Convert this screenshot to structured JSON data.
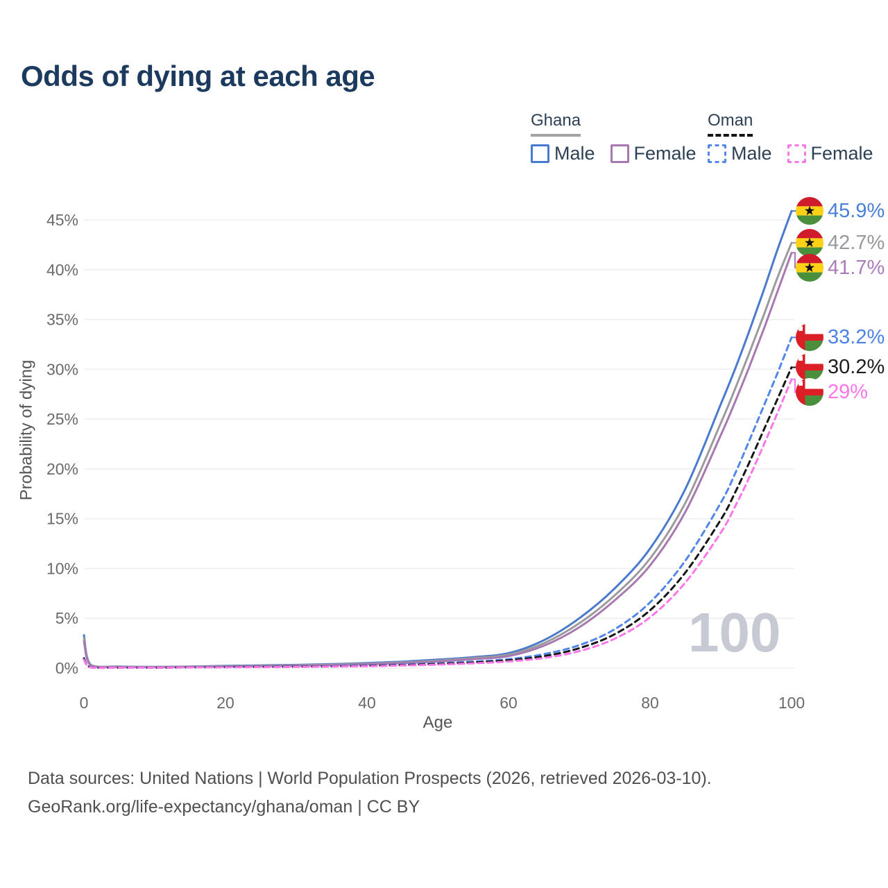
{
  "title": "Odds of dying at each age",
  "legend": {
    "groups": [
      {
        "name": "Ghana",
        "line_style": "solid",
        "underline_color": "#a3a3a3",
        "items": [
          {
            "label": "Male",
            "color": "#4a7ace"
          },
          {
            "label": "Female",
            "color": "#a878b0"
          }
        ]
      },
      {
        "name": "Oman",
        "line_style": "dashed",
        "underline_color": "#141414",
        "items": [
          {
            "label": "Male",
            "color": "#5287e8"
          },
          {
            "label": "Female",
            "color": "#fb76e9"
          }
        ]
      }
    ]
  },
  "watermark_age": "100",
  "footer": {
    "line1": "Data sources: United Nations | World Population Prospects (2026, retrieved 2026-03-10).",
    "line2": "GeoRank.org/life-expectancy/ghana/oman | CC BY"
  },
  "chart_data": {
    "type": "line",
    "title": "Odds of dying at each age",
    "xlabel": "Age",
    "ylabel": "Probability of dying",
    "xlim": [
      0,
      100
    ],
    "ylim_percent": [
      0,
      46
    ],
    "x_ticks": [
      0,
      20,
      40,
      60,
      80,
      100
    ],
    "y_ticks_percent": [
      0,
      5,
      10,
      15,
      20,
      25,
      30,
      35,
      40,
      45
    ],
    "grid": "horizontal",
    "legend_position": "top-right",
    "x": [
      0,
      1,
      5,
      10,
      15,
      20,
      25,
      30,
      35,
      40,
      45,
      50,
      55,
      60,
      65,
      70,
      75,
      80,
      85,
      90,
      92,
      94,
      96,
      98,
      100
    ],
    "series": [
      {
        "name": "Ghana Male",
        "country": "Ghana",
        "sex": "Male",
        "flag": "ghana",
        "color": "#4a7ace",
        "label_color": "#4a7fd6",
        "dashed": false,
        "end_label": "45.9%",
        "end_value_percent": 45.9,
        "values_percent": [
          3.3,
          0.3,
          0.15,
          0.12,
          0.16,
          0.22,
          0.27,
          0.32,
          0.4,
          0.5,
          0.65,
          0.85,
          1.1,
          1.5,
          2.8,
          5.0,
          8.0,
          12.0,
          18.0,
          26.5,
          30.0,
          33.8,
          37.8,
          42.0,
          45.9
        ]
      },
      {
        "name": "Ghana (both sexes)",
        "country": "Ghana",
        "sex": "Both",
        "flag": "ghana",
        "color": "#9b9b9b",
        "label_color": "#97979d",
        "dashed": false,
        "end_label": "42.7%",
        "end_value_percent": 42.7,
        "values_percent": [
          3.0,
          0.27,
          0.13,
          0.11,
          0.14,
          0.19,
          0.23,
          0.28,
          0.35,
          0.44,
          0.57,
          0.75,
          1.0,
          1.35,
          2.5,
          4.5,
          7.3,
          11.0,
          16.6,
          24.6,
          28.0,
          31.6,
          35.3,
          39.2,
          42.7
        ]
      },
      {
        "name": "Ghana Female",
        "country": "Ghana",
        "sex": "Female",
        "flag": "ghana",
        "color": "#a878b0",
        "label_color": "#aa7cb8",
        "dashed": false,
        "end_label": "41.7%",
        "end_value_percent": 41.7,
        "values_percent": [
          2.7,
          0.25,
          0.12,
          0.1,
          0.12,
          0.16,
          0.2,
          0.24,
          0.3,
          0.38,
          0.5,
          0.66,
          0.9,
          1.2,
          2.25,
          4.1,
          6.8,
          10.3,
          15.7,
          23.4,
          26.7,
          30.2,
          33.9,
          37.8,
          41.7
        ]
      },
      {
        "name": "Oman Male",
        "country": "Oman",
        "sex": "Male",
        "flag": "oman",
        "color": "#5287e8",
        "label_color": "#4c82e8",
        "dashed": true,
        "end_label": "33.2%",
        "end_value_percent": 33.2,
        "values_percent": [
          1.0,
          0.08,
          0.05,
          0.05,
          0.08,
          0.12,
          0.14,
          0.16,
          0.2,
          0.26,
          0.35,
          0.48,
          0.65,
          0.9,
          1.4,
          2.3,
          3.9,
          6.6,
          10.8,
          16.6,
          19.5,
          22.8,
          26.2,
          29.6,
          33.2
        ]
      },
      {
        "name": "Oman (both sexes)",
        "country": "Oman",
        "sex": "Both",
        "flag": "oman",
        "color": "#161616",
        "label_color": "#1d1d1d",
        "dashed": true,
        "end_label": "30.2%",
        "end_value_percent": 30.2,
        "values_percent": [
          0.95,
          0.07,
          0.04,
          0.04,
          0.07,
          0.1,
          0.12,
          0.14,
          0.17,
          0.22,
          0.3,
          0.41,
          0.56,
          0.78,
          1.2,
          2.0,
          3.4,
          5.8,
          9.6,
          14.9,
          17.6,
          20.6,
          23.8,
          27.0,
          30.2
        ]
      },
      {
        "name": "Oman Female",
        "country": "Oman",
        "sex": "Female",
        "flag": "oman",
        "color": "#fb76e9",
        "label_color": "#fb76e9",
        "dashed": true,
        "end_label": "29%",
        "end_value_percent": 29,
        "values_percent": [
          0.85,
          0.06,
          0.04,
          0.04,
          0.06,
          0.08,
          0.1,
          0.12,
          0.15,
          0.19,
          0.26,
          0.35,
          0.48,
          0.66,
          1.02,
          1.7,
          2.95,
          5.1,
          8.6,
          13.6,
          16.2,
          19.1,
          22.3,
          25.6,
          29.0
        ]
      }
    ]
  }
}
